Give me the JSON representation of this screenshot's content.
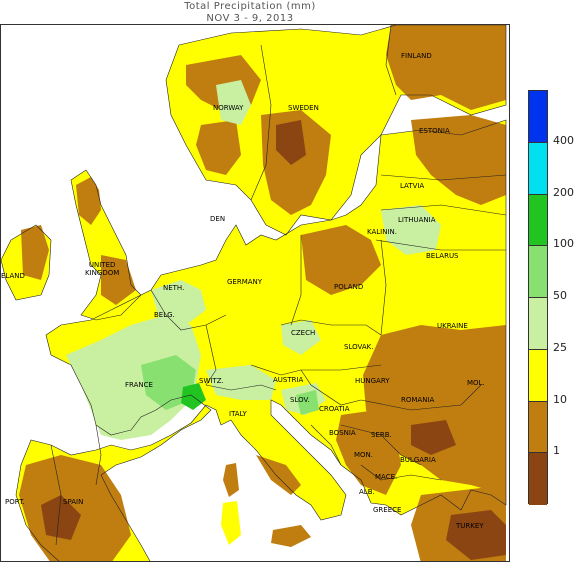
{
  "title": {
    "line1": "Total Precipitation (mm)",
    "line2": "NOV 3 - 9, 2013"
  },
  "colors": {
    "sea": "#ffffff",
    "lt1": "#8b4513",
    "b1_10": "#c07d10",
    "b10_25": "#ffff00",
    "b25_50": "#c8f0a0",
    "b50_100": "#88e070",
    "b100_200": "#22c422",
    "b200_400": "#00e0f0",
    "gt400": "#0033ee"
  },
  "legend": {
    "bins": [
      {
        "color_key": "gt400"
      },
      {
        "color_key": "b200_400"
      },
      {
        "color_key": "b100_200"
      },
      {
        "color_key": "b50_100"
      },
      {
        "color_key": "b25_50"
      },
      {
        "color_key": "b10_25"
      },
      {
        "color_key": "b1_10"
      },
      {
        "color_key": "lt1"
      }
    ],
    "ticks": [
      "400",
      "200",
      "100",
      "50",
      "25",
      "10",
      "1"
    ]
  },
  "countries": {
    "finland": "FINLAND",
    "norway": "NORWAY",
    "sweden": "SWEDEN",
    "estonia": "ESTONIA",
    "latvia": "LATVIA",
    "lithuania": "LITHUANIA",
    "kalinin": "KALININ.",
    "belarus": "BELARUS",
    "den": "DEN",
    "uk": "UNITED\nKINGDOM",
    "ireland": "ELAND",
    "neth": "NETH.",
    "belg": "BELG.",
    "germany": "GERMANY",
    "poland": "POLAND",
    "czech": "CZECH",
    "slovak": "SLOVAK.",
    "ukraine": "UKRAINE",
    "france": "FRANCE",
    "switz": "SWITZ.",
    "austria": "AUSTRIA",
    "hungary": "HUNGARY",
    "mol": "MOL.",
    "romania": "ROMANIA",
    "slov": "SLOV.",
    "croatia": "CROATIA",
    "italy": "ITALY",
    "bosnia": "BOSNIA",
    "serb": "SERB.",
    "bulgaria": "BULGARIA",
    "mon": "MON.",
    "mace": "MACE.",
    "alb": "ALB.",
    "greece": "GREECE",
    "turkey": "TURKEY",
    "port": "PORT.",
    "spain": "SPAIN"
  }
}
